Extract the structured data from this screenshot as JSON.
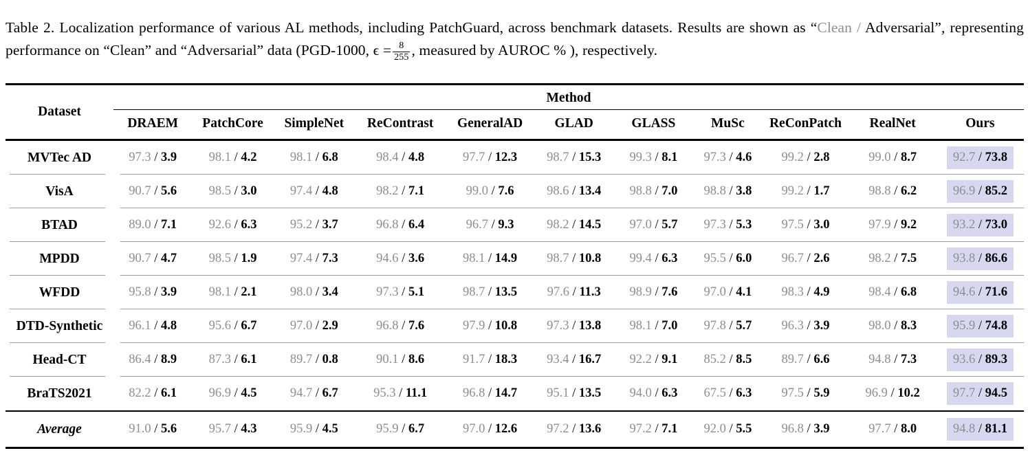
{
  "caption": {
    "part1": "Table 2. Localization performance of various AL methods, including PatchGuard, across benchmark datasets. Results are shown as “",
    "clean_gray": "Clean /",
    "part2": " Adversarial”, representing performance on “Clean” and “Adversarial” data (PGD-1000, ϵ =",
    "frac_num": "8",
    "frac_den": "255",
    "part3": ", measured by AUROC % ), respectively."
  },
  "table": {
    "dataset_header": "Dataset",
    "method_header": "Method",
    "methods": [
      "DRAEM",
      "PatchCore",
      "SimpleNet",
      "ReContrast",
      "GeneralAD",
      "GLAD",
      "GLASS",
      "MuSc",
      "ReConPatch",
      "RealNet",
      "Ours"
    ],
    "value_format": "clean / adversarial",
    "rows": [
      {
        "dataset": "MVTec AD",
        "cells": [
          {
            "clean": "97.3",
            "adv": "3.9"
          },
          {
            "clean": "98.1",
            "adv": "4.2"
          },
          {
            "clean": "98.1",
            "adv": "6.8"
          },
          {
            "clean": "98.4",
            "adv": "4.8"
          },
          {
            "clean": "97.7",
            "adv": "12.3"
          },
          {
            "clean": "98.7",
            "adv": "15.3"
          },
          {
            "clean": "99.3",
            "adv": "8.1"
          },
          {
            "clean": "97.3",
            "adv": "4.6"
          },
          {
            "clean": "99.2",
            "adv": "2.8"
          },
          {
            "clean": "99.0",
            "adv": "8.7"
          },
          {
            "clean": "92.7",
            "adv": "73.8"
          }
        ]
      },
      {
        "dataset": "VisA",
        "cells": [
          {
            "clean": "90.7",
            "adv": "5.6"
          },
          {
            "clean": "98.5",
            "adv": "3.0"
          },
          {
            "clean": "97.4",
            "adv": "4.8"
          },
          {
            "clean": "98.2",
            "adv": "7.1"
          },
          {
            "clean": "99.0",
            "adv": "7.6"
          },
          {
            "clean": "98.6",
            "adv": "13.4"
          },
          {
            "clean": "98.8",
            "adv": "7.0"
          },
          {
            "clean": "98.8",
            "adv": "3.8"
          },
          {
            "clean": "99.2",
            "adv": "1.7"
          },
          {
            "clean": "98.8",
            "adv": "6.2"
          },
          {
            "clean": "96.9",
            "adv": "85.2"
          }
        ]
      },
      {
        "dataset": "BTAD",
        "cells": [
          {
            "clean": "89.0",
            "adv": "7.1"
          },
          {
            "clean": "92.6",
            "adv": "6.3"
          },
          {
            "clean": "95.2",
            "adv": "3.7"
          },
          {
            "clean": "96.8",
            "adv": "6.4"
          },
          {
            "clean": "96.7",
            "adv": "9.3"
          },
          {
            "clean": "98.2",
            "adv": "14.5"
          },
          {
            "clean": "97.0",
            "adv": "5.7"
          },
          {
            "clean": "97.3",
            "adv": "5.3"
          },
          {
            "clean": "97.5",
            "adv": "3.0"
          },
          {
            "clean": "97.9",
            "adv": "9.2"
          },
          {
            "clean": "93.2",
            "adv": "73.0"
          }
        ]
      },
      {
        "dataset": "MPDD",
        "cells": [
          {
            "clean": "90.7",
            "adv": "4.7"
          },
          {
            "clean": "98.5",
            "adv": "1.9"
          },
          {
            "clean": "97.4",
            "adv": "7.3"
          },
          {
            "clean": "94.6",
            "adv": "3.6"
          },
          {
            "clean": "98.1",
            "adv": "14.9"
          },
          {
            "clean": "98.7",
            "adv": "10.8"
          },
          {
            "clean": "99.4",
            "adv": "6.3"
          },
          {
            "clean": "95.5",
            "adv": "6.0"
          },
          {
            "clean": "96.7",
            "adv": "2.6"
          },
          {
            "clean": "98.2",
            "adv": "7.5"
          },
          {
            "clean": "93.8",
            "adv": "86.6"
          }
        ]
      },
      {
        "dataset": "WFDD",
        "cells": [
          {
            "clean": "95.8",
            "adv": "3.9"
          },
          {
            "clean": "98.1",
            "adv": "2.1"
          },
          {
            "clean": "98.0",
            "adv": "3.4"
          },
          {
            "clean": "97.3",
            "adv": "5.1"
          },
          {
            "clean": "98.7",
            "adv": "13.5"
          },
          {
            "clean": "97.6",
            "adv": "11.3"
          },
          {
            "clean": "98.9",
            "adv": "7.6"
          },
          {
            "clean": "97.0",
            "adv": "4.1"
          },
          {
            "clean": "98.3",
            "adv": "4.9"
          },
          {
            "clean": "98.4",
            "adv": "6.8"
          },
          {
            "clean": "94.6",
            "adv": "71.6"
          }
        ]
      },
      {
        "dataset": "DTD-Synthetic",
        "cells": [
          {
            "clean": "96.1",
            "adv": "4.8"
          },
          {
            "clean": "95.6",
            "adv": "6.7"
          },
          {
            "clean": "97.0",
            "adv": "2.9"
          },
          {
            "clean": "96.8",
            "adv": "7.6"
          },
          {
            "clean": "97.9",
            "adv": "10.8"
          },
          {
            "clean": "97.3",
            "adv": "13.8"
          },
          {
            "clean": "98.1",
            "adv": "7.0"
          },
          {
            "clean": "97.8",
            "adv": "5.7"
          },
          {
            "clean": "96.3",
            "adv": "3.9"
          },
          {
            "clean": "98.0",
            "adv": "8.3"
          },
          {
            "clean": "95.9",
            "adv": "74.8"
          }
        ]
      },
      {
        "dataset": "Head-CT",
        "cells": [
          {
            "clean": "86.4",
            "adv": "8.9"
          },
          {
            "clean": "87.3",
            "adv": "6.1"
          },
          {
            "clean": "89.7",
            "adv": "0.8"
          },
          {
            "clean": "90.1",
            "adv": "8.6"
          },
          {
            "clean": "91.7",
            "adv": "18.3"
          },
          {
            "clean": "93.4",
            "adv": "16.7"
          },
          {
            "clean": "92.2",
            "adv": "9.1"
          },
          {
            "clean": "85.2",
            "adv": "8.5"
          },
          {
            "clean": "89.7",
            "adv": "6.6"
          },
          {
            "clean": "94.8",
            "adv": "7.3"
          },
          {
            "clean": "93.6",
            "adv": "89.3"
          }
        ]
      },
      {
        "dataset": "BraTS2021",
        "cells": [
          {
            "clean": "82.2",
            "adv": "6.1"
          },
          {
            "clean": "96.9",
            "adv": "4.5"
          },
          {
            "clean": "94.7",
            "adv": "6.7"
          },
          {
            "clean": "95.3",
            "adv": "11.1"
          },
          {
            "clean": "96.8",
            "adv": "14.7"
          },
          {
            "clean": "95.1",
            "adv": "13.5"
          },
          {
            "clean": "94.0",
            "adv": "6.3"
          },
          {
            "clean": "67.5",
            "adv": "6.3"
          },
          {
            "clean": "97.5",
            "adv": "5.9"
          },
          {
            "clean": "96.9",
            "adv": "10.2"
          },
          {
            "clean": "97.7",
            "adv": "94.5"
          }
        ]
      },
      {
        "dataset": "Average",
        "average": true,
        "cells": [
          {
            "clean": "91.0",
            "adv": "5.6"
          },
          {
            "clean": "95.7",
            "adv": "4.3"
          },
          {
            "clean": "95.9",
            "adv": "4.5"
          },
          {
            "clean": "95.9",
            "adv": "6.7"
          },
          {
            "clean": "97.0",
            "adv": "12.6"
          },
          {
            "clean": "97.2",
            "adv": "13.6"
          },
          {
            "clean": "97.2",
            "adv": "7.1"
          },
          {
            "clean": "92.0",
            "adv": "5.5"
          },
          {
            "clean": "96.8",
            "adv": "3.9"
          },
          {
            "clean": "97.7",
            "adv": "8.0"
          },
          {
            "clean": "94.8",
            "adv": "81.1"
          }
        ]
      }
    ]
  },
  "colors": {
    "ours_highlight": "#d7d7f0",
    "clean_text": "#8e8e8e"
  }
}
